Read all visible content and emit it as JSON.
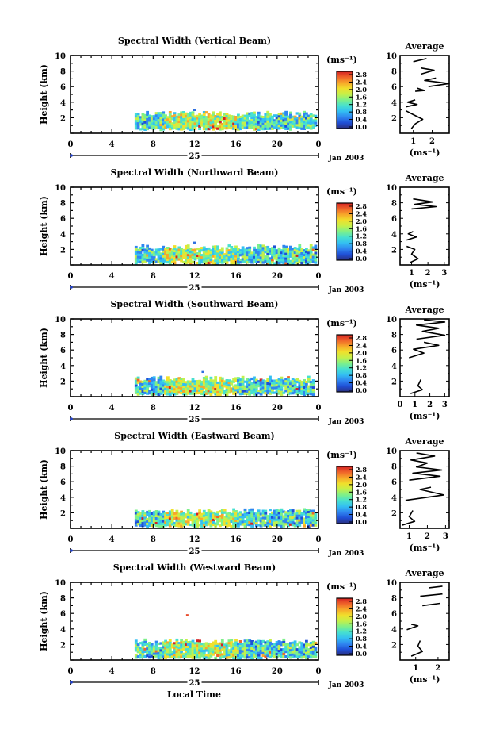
{
  "figure": {
    "xlabel": "Local Time",
    "date_label": "Jan 2003",
    "day_label": "25",
    "unit_label": "(ms⁻¹)",
    "avg_title": "Average",
    "avg_xlabel": "(ms⁻¹)",
    "colorbar_ticks": [
      "2.8",
      "2.4",
      "2.0",
      "1.6",
      "1.2",
      "0.8",
      "0.4",
      "0.0"
    ],
    "colormap": [
      "#2b2f7f",
      "#1f4fd6",
      "#2f86f0",
      "#33bff2",
      "#46e0d0",
      "#7df08a",
      "#c4f04a",
      "#f0e02c",
      "#f7a72a",
      "#f0642a",
      "#d42222"
    ]
  },
  "chart_data": [
    {
      "type": "heatmap",
      "title": "Spectral Width (Vertical Beam)",
      "xlabel": "Local Time",
      "ylabel": "Height (km)",
      "xlim": [
        0,
        24
      ],
      "ylim": [
        0,
        10
      ],
      "xticks": [
        "0",
        "4",
        "8",
        "12",
        "16",
        "20",
        "0"
      ],
      "yticks": [
        "2",
        "4",
        "6",
        "8",
        "10"
      ],
      "colorbar": {
        "label": "(ms⁻¹)",
        "range": [
          0.0,
          2.8
        ]
      },
      "data_region": {
        "time_start": 6.2,
        "time_end": 23.8,
        "height_bottom": 0.6,
        "height_top": 2.6,
        "stray_points": [
          [
            12.0,
            3.0
          ]
        ]
      },
      "average_profile": {
        "title": "Average",
        "xlabel": "(ms⁻¹)",
        "xticks": [
          "1",
          "2"
        ],
        "xlim": [
          0.3,
          2.9
        ],
        "ylim": [
          0,
          10
        ],
        "segments": [
          [
            [
              0.9,
              0.6
            ],
            [
              1.1,
              1.2
            ],
            [
              1.5,
              1.8
            ],
            [
              1.0,
              2.4
            ],
            [
              0.6,
              2.9
            ]
          ],
          [
            [
              0.6,
              3.4
            ],
            [
              1.2,
              3.7
            ],
            [
              0.7,
              4.0
            ],
            [
              1.1,
              4.3
            ]
          ],
          [
            [
              1.1,
              5.4
            ],
            [
              1.6,
              5.5
            ],
            [
              1.2,
              5.8
            ]
          ],
          [
            [
              1.8,
              6.0
            ],
            [
              2.9,
              6.4
            ],
            [
              1.6,
              6.8
            ],
            [
              2.2,
              7.1
            ]
          ],
          [
            [
              1.4,
              7.6
            ],
            [
              2.1,
              8.1
            ],
            [
              1.4,
              8.4
            ]
          ],
          [
            [
              1.0,
              9.2
            ],
            [
              1.7,
              9.6
            ]
          ]
        ]
      }
    },
    {
      "type": "heatmap",
      "title": "Spectral Width (Northward Beam)",
      "xlabel": "Local Time",
      "ylabel": "Height (km)",
      "xlim": [
        0,
        24
      ],
      "ylim": [
        0,
        10
      ],
      "xticks": [
        "0",
        "4",
        "8",
        "12",
        "16",
        "20",
        "0"
      ],
      "yticks": [
        "2",
        "4",
        "6",
        "8",
        "10"
      ],
      "colorbar": {
        "label": "(ms⁻¹)",
        "range": [
          0.0,
          2.8
        ]
      },
      "data_region": {
        "time_start": 6.2,
        "time_end": 23.8,
        "height_bottom": 0.3,
        "height_top": 2.4,
        "stray_points": [
          [
            12.0,
            2.9
          ]
        ]
      },
      "average_profile": {
        "title": "Average",
        "xlabel": "(ms⁻¹)",
        "xticks": [
          "1",
          "2",
          "3"
        ],
        "xlim": [
          0.3,
          3.3
        ],
        "ylim": [
          0,
          10
        ],
        "segments": [
          [
            [
              0.9,
              0.3
            ],
            [
              1.4,
              0.8
            ],
            [
              1.0,
              1.4
            ],
            [
              1.2,
              2.0
            ],
            [
              0.7,
              2.4
            ]
          ],
          [
            [
              0.7,
              3.2
            ],
            [
              1.3,
              3.6
            ],
            [
              0.8,
              4.0
            ],
            [
              1.1,
              4.3
            ]
          ],
          [
            [
              1.0,
              7.2
            ],
            [
              2.5,
              7.5
            ],
            [
              1.2,
              7.8
            ],
            [
              2.3,
              8.1
            ],
            [
              1.1,
              8.5
            ]
          ]
        ]
      }
    },
    {
      "type": "heatmap",
      "title": "Spectral Width (Southward Beam)",
      "xlabel": "Local Time",
      "ylabel": "Height (km)",
      "xlim": [
        0,
        24
      ],
      "ylim": [
        0,
        10
      ],
      "xticks": [
        "0",
        "4",
        "8",
        "12",
        "16",
        "20",
        "0"
      ],
      "yticks": [
        "2",
        "4",
        "6",
        "8",
        "10"
      ],
      "colorbar": {
        "label": "(ms⁻¹)",
        "range": [
          0.0,
          2.8
        ]
      },
      "data_region": {
        "time_start": 6.2,
        "time_end": 23.6,
        "height_bottom": 0.4,
        "height_top": 2.4,
        "stray_points": [
          [
            12.8,
            3.2
          ]
        ]
      },
      "average_profile": {
        "title": "Average",
        "xlabel": "(ms⁻¹)",
        "xticks": [
          "0",
          "1",
          "2",
          "3"
        ],
        "xlim": [
          0,
          3.3
        ],
        "ylim": [
          0,
          10
        ],
        "segments": [
          [
            [
              0.7,
              0.4
            ],
            [
              1.5,
              0.9
            ],
            [
              1.2,
              1.4
            ],
            [
              1.4,
              2.2
            ]
          ],
          [
            [
              0.6,
              5.0
            ],
            [
              1.6,
              5.6
            ],
            [
              0.9,
              6.1
            ],
            [
              2.6,
              6.6
            ],
            [
              1.6,
              7.0
            ]
          ],
          [
            [
              1.1,
              7.4
            ],
            [
              3.0,
              7.9
            ],
            [
              1.5,
              8.4
            ],
            [
              2.6,
              8.8
            ],
            [
              1.1,
              9.2
            ],
            [
              3.0,
              9.6
            ],
            [
              1.6,
              9.9
            ]
          ]
        ]
      }
    },
    {
      "type": "heatmap",
      "title": "Spectral Width (Eastward Beam)",
      "xlabel": "Local Time",
      "ylabel": "Height (km)",
      "xlim": [
        0,
        24
      ],
      "ylim": [
        0,
        10
      ],
      "xticks": [
        "0",
        "4",
        "8",
        "12",
        "16",
        "20",
        "0"
      ],
      "yticks": [
        "2",
        "4",
        "6",
        "8",
        "10"
      ],
      "colorbar": {
        "label": "(ms⁻¹)",
        "range": [
          0.0,
          2.8
        ]
      },
      "data_region": {
        "time_start": 6.2,
        "time_end": 23.8,
        "height_bottom": 0.4,
        "height_top": 2.3,
        "stray_points": []
      },
      "average_profile": {
        "title": "Average",
        "xlabel": "(ms⁻¹)",
        "xticks": [
          "1",
          "2",
          "3"
        ],
        "xlim": [
          0.5,
          3.2
        ],
        "ylim": [
          0,
          10
        ],
        "segments": [
          [
            [
              0.6,
              0.4
            ],
            [
              1.3,
              0.9
            ],
            [
              1.0,
              1.5
            ],
            [
              1.2,
              2.3
            ]
          ],
          [
            [
              0.8,
              3.6
            ],
            [
              2.9,
              4.3
            ],
            [
              1.6,
              5.0
            ],
            [
              2.2,
              5.3
            ]
          ],
          [
            [
              1.0,
              6.2
            ],
            [
              2.7,
              6.7
            ],
            [
              1.2,
              7.1
            ],
            [
              2.8,
              7.5
            ],
            [
              1.4,
              7.9
            ],
            [
              2.0,
              8.4
            ],
            [
              1.1,
              8.8
            ],
            [
              2.4,
              9.3
            ],
            [
              1.4,
              9.7
            ]
          ]
        ]
      }
    },
    {
      "type": "heatmap",
      "title": "Spectral Width (Westward Beam)",
      "xlabel": "Local Time",
      "ylabel": "Height (km)",
      "xlim": [
        0,
        24
      ],
      "ylim": [
        0,
        10
      ],
      "xticks": [
        "0",
        "4",
        "8",
        "12",
        "16",
        "20",
        "0"
      ],
      "yticks": [
        "2",
        "4",
        "6",
        "8",
        "10"
      ],
      "colorbar": {
        "label": "(ms⁻¹)",
        "range": [
          0.0,
          2.8
        ]
      },
      "data_region": {
        "time_start": 6.2,
        "time_end": 23.8,
        "height_bottom": 0.4,
        "height_top": 2.5,
        "stray_points": [
          [
            11.3,
            5.8
          ]
        ]
      },
      "average_profile": {
        "title": "Average",
        "xlabel": "(ms⁻¹)",
        "xticks": [
          "1",
          "2"
        ],
        "xlim": [
          0.3,
          2.5
        ],
        "ylim": [
          0,
          10
        ],
        "segments": [
          [
            [
              0.8,
              0.5
            ],
            [
              1.3,
              1.1
            ],
            [
              1.1,
              1.8
            ],
            [
              1.2,
              2.5
            ]
          ],
          [
            [
              0.6,
              3.9
            ],
            [
              1.1,
              4.4
            ],
            [
              0.8,
              4.6
            ]
          ],
          [
            [
              1.3,
              7.0
            ],
            [
              2.1,
              7.3
            ]
          ],
          [
            [
              1.2,
              8.2
            ],
            [
              2.2,
              8.5
            ]
          ],
          [
            [
              1.6,
              9.3
            ],
            [
              2.2,
              9.5
            ]
          ]
        ]
      }
    }
  ]
}
